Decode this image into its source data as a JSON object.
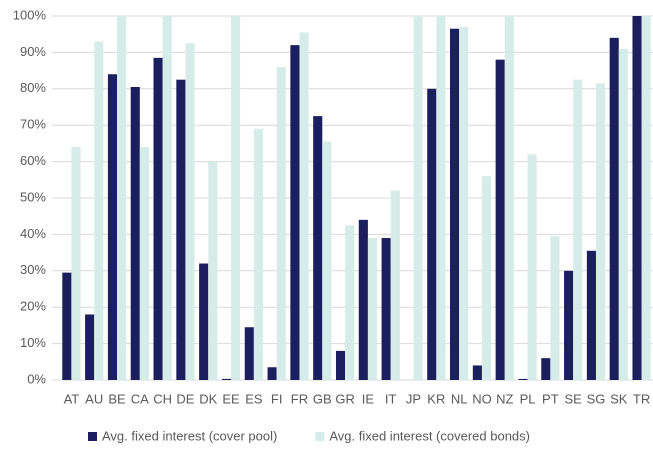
{
  "chart_data": {
    "type": "bar",
    "categories": [
      "AT",
      "AU",
      "BE",
      "CA",
      "CH",
      "DE",
      "DK",
      "EE",
      "ES",
      "FI",
      "FR",
      "GB",
      "GR",
      "IE",
      "IT",
      "JP",
      "KR",
      "NL",
      "NO",
      "NZ",
      "PL",
      "PT",
      "SE",
      "SG",
      "SK",
      "TR"
    ],
    "series": [
      {
        "name": "Avg. fixed interest (cover pool)",
        "color": "#1b1f5e",
        "values": [
          29.5,
          18,
          84,
          80.5,
          88.5,
          82.5,
          32,
          0.3,
          14.5,
          3.5,
          92,
          72.5,
          8,
          44,
          39,
          0,
          80,
          96.5,
          4,
          88,
          0.3,
          6,
          30,
          35.5,
          94,
          100
        ]
      },
      {
        "name": "Avg.  fixed interest (covered bonds)",
        "color": "#d6ece8",
        "values": [
          64,
          93,
          100,
          64,
          100,
          92.5,
          60,
          100,
          69,
          86,
          95.5,
          65.5,
          42.5,
          39,
          52,
          100,
          100,
          97,
          56,
          100,
          62,
          39.5,
          82.5,
          81.5,
          91,
          100
        ]
      }
    ],
    "ylim": [
      0,
      100
    ],
    "yticks": [
      {
        "value": 0,
        "label": "0%"
      },
      {
        "value": 10,
        "label": "10%"
      },
      {
        "value": 20,
        "label": "20%"
      },
      {
        "value": 30,
        "label": "30%"
      },
      {
        "value": 40,
        "label": "40%"
      },
      {
        "value": 50,
        "label": "50%"
      },
      {
        "value": 60,
        "label": "60%"
      },
      {
        "value": 70,
        "label": "70%"
      },
      {
        "value": 80,
        "label": "80%"
      },
      {
        "value": 90,
        "label": "90%"
      },
      {
        "value": 100,
        "label": "100%"
      }
    ],
    "grid": true
  }
}
